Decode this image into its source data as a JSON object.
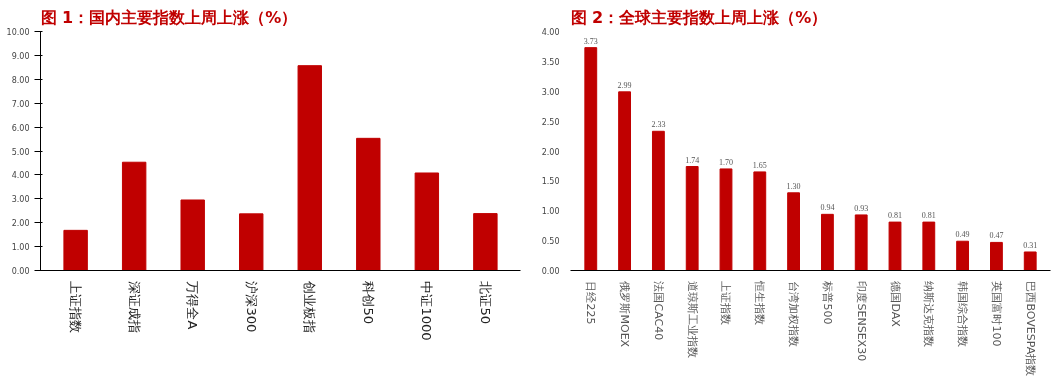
{
  "chart_data": [
    {
      "type": "bar",
      "title": "图 1：国内主要指数上周上涨（%）",
      "categories": [
        "上证指数",
        "深证成指",
        "万得全A",
        "沪深300",
        "创业板指",
        "科创50",
        "中证1000",
        "北证50"
      ],
      "series": [
        {
          "color": "#c00000",
          "values": [
            1.68,
            4.53,
            2.95,
            2.37,
            8.57,
            5.53,
            4.08,
            2.38
          ]
        }
      ],
      "ylim": [
        0,
        10
      ],
      "yticks": [
        {
          "value": 0,
          "label": "0.00"
        },
        {
          "value": 1,
          "label": "1.00"
        },
        {
          "value": 2,
          "label": "2.00"
        },
        {
          "value": 3,
          "label": "3.00"
        },
        {
          "value": 4,
          "label": "4.00"
        },
        {
          "value": 5,
          "label": "5.00"
        },
        {
          "value": 6,
          "label": "6.00"
        },
        {
          "value": 7,
          "label": "7.00"
        },
        {
          "value": 8,
          "label": "8.00"
        },
        {
          "value": 9,
          "label": "9.00"
        },
        {
          "value": 10,
          "label": "10.00"
        }
      ],
      "grid": false
    },
    {
      "type": "bar",
      "title": "图 2：全球主要指数上周上涨（%）",
      "categories": [
        "日经225",
        "俄罗斯MOEX",
        "法国CAC40",
        "道琼斯工业指数",
        "上证指数",
        "恒生指数",
        "台湾加权指数",
        "标普500",
        "印度SENSEX30",
        "德国DAX",
        "纳斯达克指数",
        "韩国综合指数",
        "英国富时100",
        "巴西BOVESPA指数"
      ],
      "series": [
        {
          "color": "#c00000",
          "values": [
            3.73,
            2.99,
            2.33,
            1.74,
            1.7,
            1.65,
            1.3,
            0.94,
            0.93,
            0.81,
            0.81,
            0.49,
            0.47,
            0.31
          ],
          "value_labels": [
            "3.73",
            "2.99",
            "2.33",
            "1.74",
            "1.70",
            "1.65",
            "1.30",
            "0.94",
            "0.93",
            "0.81",
            "0.81",
            "0.49",
            "0.47",
            "0.31"
          ]
        }
      ],
      "ylim": [
        0,
        4
      ],
      "yticks": [
        {
          "value": 0,
          "label": "0.00"
        },
        {
          "value": 0.5,
          "label": "0.50"
        },
        {
          "value": 1,
          "label": "1.00"
        },
        {
          "value": 1.5,
          "label": "1.50"
        },
        {
          "value": 2,
          "label": "2.00"
        },
        {
          "value": 2.5,
          "label": "2.50"
        },
        {
          "value": 3,
          "label": "3.00"
        },
        {
          "value": 3.5,
          "label": "3.50"
        },
        {
          "value": 4,
          "label": "4.00"
        }
      ],
      "grid": false
    }
  ]
}
